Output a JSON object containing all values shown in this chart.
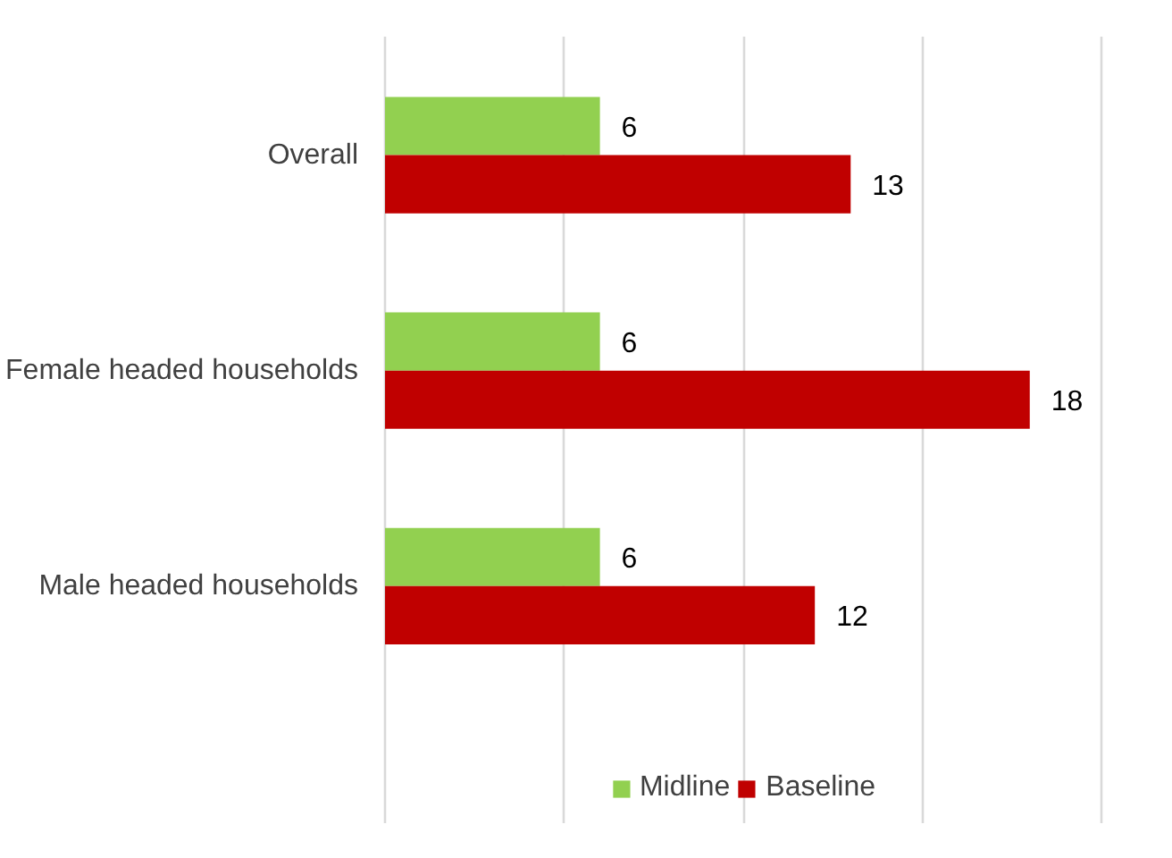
{
  "chart_data": {
    "type": "bar",
    "orientation": "horizontal",
    "categories": [
      "Overall",
      "Female headed households",
      "Male headed households"
    ],
    "series": [
      {
        "name": "Midline",
        "color": "#92d050",
        "values": [
          6,
          6,
          6
        ]
      },
      {
        "name": "Baseline",
        "color": "#c00000",
        "values": [
          13,
          18,
          12
        ]
      }
    ],
    "xticks": [
      {
        "value": 0,
        "label": null
      },
      {
        "value": 5,
        "label": null
      },
      {
        "value": 10,
        "label": null
      },
      {
        "value": 15,
        "label": null
      },
      {
        "value": 20,
        "label": null
      }
    ],
    "tick_labels": "y",
    "grid": "x",
    "legend": "bottom",
    "data_labels": true
  }
}
